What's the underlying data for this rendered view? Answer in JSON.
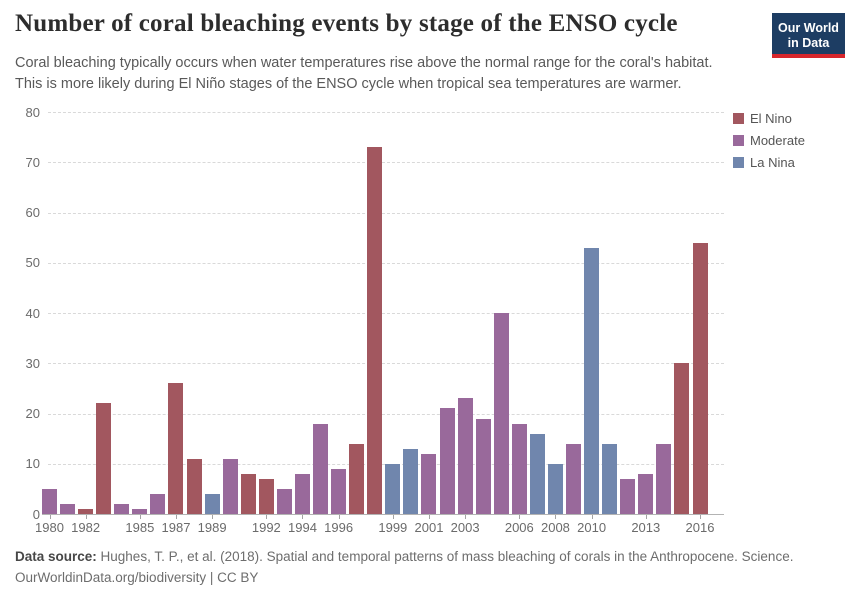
{
  "header": {
    "title": "Number of coral bleaching events by stage of the ENSO cycle",
    "subtitle_line1": "Coral bleaching typically occurs when water temperatures rise above the normal range for the coral's habitat.",
    "subtitle_line2": "This is more likely during El Niño stages of the ENSO cycle when tropical sea temperatures are warmer.",
    "logo": {
      "line1": "Our World",
      "line2": "in Data"
    }
  },
  "colors": {
    "el_nino": "#a2575f",
    "moderate": "#99699b",
    "la_nina": "#7086ad",
    "logo_bg": "#1d3d63",
    "logo_stripe": "#d7262c",
    "gridline": "#d9d9d9",
    "axis_text": "#6b6b6b"
  },
  "chart_data": {
    "type": "bar",
    "title": "Number of coral bleaching events by stage of the ENSO cycle",
    "xlabel": "",
    "ylabel": "",
    "ylim": [
      0,
      80
    ],
    "yticks": [
      0,
      10,
      20,
      30,
      40,
      50,
      60,
      70,
      80
    ],
    "xtick_labels": [
      1980,
      1982,
      1985,
      1987,
      1989,
      1992,
      1994,
      1996,
      1999,
      2001,
      2003,
      2006,
      2008,
      2010,
      2013,
      2016
    ],
    "grid": "horizontal-dashed",
    "legend_position": "top-right",
    "legend": [
      {
        "label": "El Nino",
        "color": "#a2575f"
      },
      {
        "label": "Moderate",
        "color": "#99699b"
      },
      {
        "label": "La Nina",
        "color": "#7086ad"
      }
    ],
    "points": [
      {
        "year": 1980,
        "phase": "Moderate",
        "value": 5
      },
      {
        "year": 1981,
        "phase": "Moderate",
        "value": 2
      },
      {
        "year": 1982,
        "phase": "El Nino",
        "value": 1
      },
      {
        "year": 1983,
        "phase": "El Nino",
        "value": 22
      },
      {
        "year": 1984,
        "phase": "Moderate",
        "value": 2
      },
      {
        "year": 1985,
        "phase": "Moderate",
        "value": 1
      },
      {
        "year": 1986,
        "phase": "Moderate",
        "value": 4
      },
      {
        "year": 1987,
        "phase": "El Nino",
        "value": 26
      },
      {
        "year": 1988,
        "phase": "El Nino",
        "value": 11
      },
      {
        "year": 1989,
        "phase": "La Nina",
        "value": 4
      },
      {
        "year": 1990,
        "phase": "Moderate",
        "value": 11
      },
      {
        "year": 1991,
        "phase": "El Nino",
        "value": 8
      },
      {
        "year": 1992,
        "phase": "El Nino",
        "value": 7
      },
      {
        "year": 1993,
        "phase": "Moderate",
        "value": 5
      },
      {
        "year": 1994,
        "phase": "Moderate",
        "value": 8
      },
      {
        "year": 1995,
        "phase": "Moderate",
        "value": 18
      },
      {
        "year": 1996,
        "phase": "Moderate",
        "value": 9
      },
      {
        "year": 1997,
        "phase": "El Nino",
        "value": 14
      },
      {
        "year": 1998,
        "phase": "El Nino",
        "value": 73
      },
      {
        "year": 1999,
        "phase": "La Nina",
        "value": 10
      },
      {
        "year": 2000,
        "phase": "La Nina",
        "value": 13
      },
      {
        "year": 2001,
        "phase": "Moderate",
        "value": 12
      },
      {
        "year": 2002,
        "phase": "Moderate",
        "value": 21
      },
      {
        "year": 2003,
        "phase": "Moderate",
        "value": 23
      },
      {
        "year": 2004,
        "phase": "Moderate",
        "value": 19
      },
      {
        "year": 2005,
        "phase": "Moderate",
        "value": 40
      },
      {
        "year": 2006,
        "phase": "Moderate",
        "value": 18
      },
      {
        "year": 2007,
        "phase": "La Nina",
        "value": 16
      },
      {
        "year": 2008,
        "phase": "La Nina",
        "value": 10
      },
      {
        "year": 2009,
        "phase": "Moderate",
        "value": 14
      },
      {
        "year": 2010,
        "phase": "La Nina",
        "value": 53
      },
      {
        "year": 2011,
        "phase": "La Nina",
        "value": 14
      },
      {
        "year": 2012,
        "phase": "Moderate",
        "value": 7
      },
      {
        "year": 2013,
        "phase": "Moderate",
        "value": 8
      },
      {
        "year": 2014,
        "phase": "Moderate",
        "value": 14
      },
      {
        "year": 2015,
        "phase": "El Nino",
        "value": 30
      },
      {
        "year": 2016,
        "phase": "El Nino",
        "value": 54
      }
    ]
  },
  "footer": {
    "source_label": "Data source:",
    "source_text": " Hughes, T. P., et al. (2018). Spatial and temporal patterns of mass bleaching of corals in the Anthropocene. Science.",
    "attribution": "OurWorldinData.org/biodiversity | CC BY"
  }
}
